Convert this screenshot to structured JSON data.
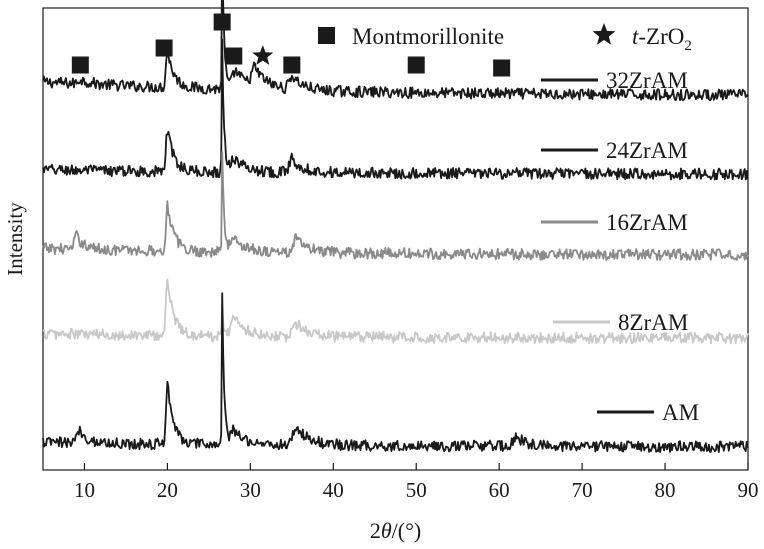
{
  "chart_data": {
    "type": "line",
    "title": "",
    "xlabel": "2θ/(°)",
    "ylabel": "Intensity",
    "xlim": [
      5,
      90
    ],
    "xticks": [
      10,
      20,
      30,
      40,
      50,
      60,
      70,
      80,
      90
    ],
    "yticks": [],
    "grid": false,
    "stacked_offset": true,
    "marker_legend": [
      {
        "symbol": "square",
        "label": "Montmorillonite"
      },
      {
        "symbol": "star",
        "label": "t-ZrO2",
        "label_prefix": "t",
        "label_main": "-ZrO",
        "label_sub": "2"
      }
    ],
    "phase_markers": [
      {
        "symbol": "square",
        "two_theta": 9.5
      },
      {
        "symbol": "square",
        "two_theta": 19.6
      },
      {
        "symbol": "square",
        "two_theta": 26.6
      },
      {
        "symbol": "square",
        "two_theta": 28.0
      },
      {
        "symbol": "star",
        "two_theta": 31.5
      },
      {
        "symbol": "square",
        "two_theta": 35.0
      },
      {
        "symbol": "square",
        "two_theta": 50.0
      },
      {
        "symbol": "square",
        "two_theta": 60.3
      }
    ],
    "series": [
      {
        "name": "32ZrAM",
        "color": "#1a1a1a",
        "baseline": 0.81,
        "noise": 0.012,
        "tail_slope": 0.06,
        "peaks": [
          [
            9.5,
            0.01,
            0.8
          ],
          [
            20.0,
            0.08,
            0.5
          ],
          [
            26.6,
            0.3,
            0.15
          ],
          [
            28.2,
            0.04,
            1.0
          ],
          [
            30.5,
            0.04,
            1.0
          ],
          [
            35.0,
            0.03,
            0.9
          ]
        ]
      },
      {
        "name": "24ZrAM",
        "color": "#1a1a1a",
        "baseline": 0.64,
        "noise": 0.012,
        "tail_slope": 0.02,
        "peaks": [
          [
            20.0,
            0.09,
            0.5
          ],
          [
            26.6,
            0.28,
            0.15
          ],
          [
            28.0,
            0.03,
            1.0
          ],
          [
            35.0,
            0.03,
            0.9
          ]
        ]
      },
      {
        "name": "16ZrAM",
        "color": "#8a8a8a",
        "baseline": 0.465,
        "noise": 0.012,
        "tail_slope": 0.03,
        "peaks": [
          [
            9.0,
            0.03,
            0.6
          ],
          [
            20.0,
            0.1,
            0.5
          ],
          [
            26.6,
            0.22,
            0.15
          ],
          [
            28.0,
            0.03,
            1.0
          ],
          [
            35.5,
            0.03,
            0.9
          ]
        ]
      },
      {
        "name": "8ZrAM",
        "color": "#c8c8c8",
        "baseline": 0.285,
        "noise": 0.012,
        "tail_slope": 0.02,
        "peaks": [
          [
            20.0,
            0.12,
            0.5
          ],
          [
            26.6,
            0.06,
            0.15
          ],
          [
            28.0,
            0.04,
            1.0
          ],
          [
            35.5,
            0.03,
            0.9
          ]
        ]
      },
      {
        "name": "AM",
        "color": "#1a1a1a",
        "baseline": 0.05,
        "noise": 0.012,
        "tail_slope": 0.02,
        "peaks": [
          [
            9.3,
            0.03,
            0.6
          ],
          [
            20.0,
            0.14,
            0.45
          ],
          [
            26.6,
            0.33,
            0.15
          ],
          [
            28.0,
            0.03,
            1.0
          ],
          [
            35.5,
            0.04,
            1.0
          ],
          [
            62.0,
            0.02,
            0.9
          ]
        ]
      }
    ]
  }
}
